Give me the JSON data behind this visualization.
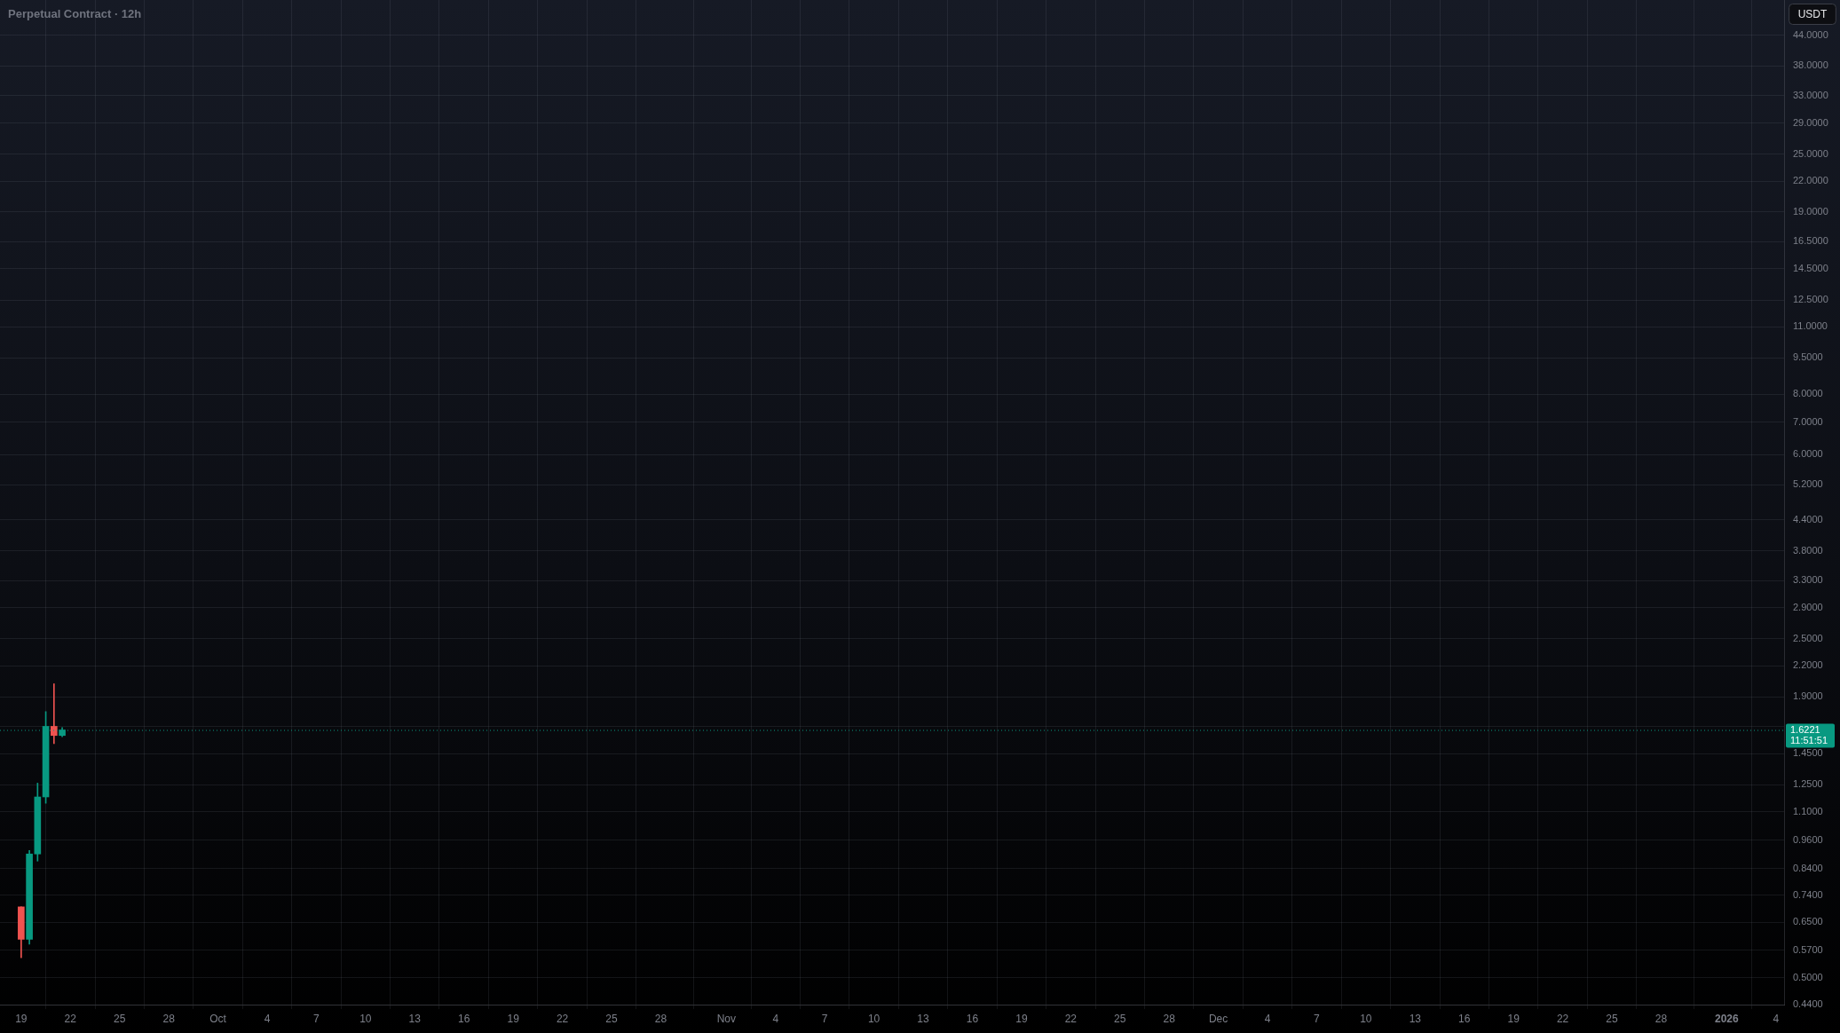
{
  "chart_data": {
    "type": "candlestick",
    "title": "Perpetual Contract · 12h",
    "ylabel": "USDT",
    "x": [
      "2025-09-19T00:00",
      "2025-09-19T12:00",
      "2025-09-20T00:00",
      "2025-09-20T12:00",
      "2025-09-21T00:00",
      "2025-09-21T12:00"
    ],
    "ohlc": [
      [
        0.7,
        0.7,
        0.55,
        0.6
      ],
      [
        0.6,
        0.915,
        0.586,
        0.9
      ],
      [
        0.9,
        1.26,
        0.87,
        1.18
      ],
      [
        1.18,
        1.77,
        1.145,
        1.65
      ],
      [
        1.65,
        2.02,
        1.52,
        1.58
      ],
      [
        1.58,
        1.64,
        1.57,
        1.6221
      ]
    ],
    "colors": [
      "#ef5350",
      "#089981",
      "#089981",
      "#089981",
      "#ef5350",
      "#089981"
    ],
    "xlim": [
      "2025-09-17T17:00",
      "2026-01-04T12:00"
    ],
    "xticks": [
      {
        "value": "2025-09-19",
        "label": "19"
      },
      {
        "value": "2025-09-22",
        "label": "22"
      },
      {
        "value": "2025-09-25",
        "label": "25"
      },
      {
        "value": "2025-09-28",
        "label": "28"
      },
      {
        "value": "2025-10-01",
        "label": "Oct"
      },
      {
        "value": "2025-10-04",
        "label": "4"
      },
      {
        "value": "2025-10-07",
        "label": "7"
      },
      {
        "value": "2025-10-10",
        "label": "10"
      },
      {
        "value": "2025-10-13",
        "label": "13"
      },
      {
        "value": "2025-10-16",
        "label": "16"
      },
      {
        "value": "2025-10-19",
        "label": "19"
      },
      {
        "value": "2025-10-22",
        "label": "22"
      },
      {
        "value": "2025-10-25",
        "label": "25"
      },
      {
        "value": "2025-10-28",
        "label": "28"
      },
      {
        "value": "2025-11-01",
        "label": "Nov"
      },
      {
        "value": "2025-11-04",
        "label": "4"
      },
      {
        "value": "2025-11-07",
        "label": "7"
      },
      {
        "value": "2025-11-10",
        "label": "10"
      },
      {
        "value": "2025-11-13",
        "label": "13"
      },
      {
        "value": "2025-11-16",
        "label": "16"
      },
      {
        "value": "2025-11-19",
        "label": "19"
      },
      {
        "value": "2025-11-22",
        "label": "22"
      },
      {
        "value": "2025-11-25",
        "label": "25"
      },
      {
        "value": "2025-11-28",
        "label": "28"
      },
      {
        "value": "2025-12-01",
        "label": "Dec"
      },
      {
        "value": "2025-12-04",
        "label": "4"
      },
      {
        "value": "2025-12-07",
        "label": "7"
      },
      {
        "value": "2025-12-10",
        "label": "10"
      },
      {
        "value": "2025-12-13",
        "label": "13"
      },
      {
        "value": "2025-12-16",
        "label": "16"
      },
      {
        "value": "2025-12-19",
        "label": "19"
      },
      {
        "value": "2025-12-22",
        "label": "22"
      },
      {
        "value": "2025-12-25",
        "label": "25"
      },
      {
        "value": "2025-12-28",
        "label": "28"
      },
      {
        "value": "2026-01-01",
        "label": "2026"
      },
      {
        "value": "2026-01-04",
        "label": "4"
      }
    ],
    "ylim": [
      0.44,
      52
    ],
    "yticks": [
      {
        "value": 0.44,
        "label": "0.4400"
      },
      {
        "value": 0.5,
        "label": "0.5000"
      },
      {
        "value": 0.57,
        "label": "0.5700"
      },
      {
        "value": 0.65,
        "label": "0.6500"
      },
      {
        "value": 0.74,
        "label": "0.7400"
      },
      {
        "value": 0.84,
        "label": "0.8400"
      },
      {
        "value": 0.96,
        "label": "0.9600"
      },
      {
        "value": 1.1,
        "label": "1.1000"
      },
      {
        "value": 1.25,
        "label": "1.2500"
      },
      {
        "value": 1.45,
        "label": "1.4500"
      },
      {
        "value": 1.65,
        "label": null
      },
      {
        "value": 1.9,
        "label": "1.9000"
      },
      {
        "value": 2.2,
        "label": "2.2000"
      },
      {
        "value": 2.5,
        "label": "2.5000"
      },
      {
        "value": 2.9,
        "label": "2.9000"
      },
      {
        "value": 3.3,
        "label": "3.3000"
      },
      {
        "value": 3.8,
        "label": "3.8000"
      },
      {
        "value": 4.4,
        "label": "4.4000"
      },
      {
        "value": 5.2,
        "label": "5.2000"
      },
      {
        "value": 6,
        "label": "6.0000"
      },
      {
        "value": 7,
        "label": "7.0000"
      },
      {
        "value": 8,
        "label": "8.0000"
      },
      {
        "value": 9.5,
        "label": "9.5000"
      },
      {
        "value": 11,
        "label": "11.0000"
      },
      {
        "value": 12.5,
        "label": "12.5000"
      },
      {
        "value": 14.5,
        "label": "14.5000"
      },
      {
        "value": 16.5,
        "label": "16.5000"
      },
      {
        "value": 19,
        "label": "19.0000"
      },
      {
        "value": 22,
        "label": "22.0000"
      },
      {
        "value": 25,
        "label": "25.0000"
      },
      {
        "value": 29,
        "label": "29.0000"
      },
      {
        "value": 33,
        "label": "33.0000"
      },
      {
        "value": 38,
        "label": "38.0000"
      },
      {
        "value": 44,
        "label": "44.0000"
      }
    ],
    "log": true,
    "grid": true,
    "ref_lines": [
      {
        "axis": "y",
        "value": 1.6221,
        "label": "1.6221",
        "color": "#089981",
        "line_style": "dotted"
      }
    ],
    "annotations": [
      "11:51:51"
    ]
  }
}
